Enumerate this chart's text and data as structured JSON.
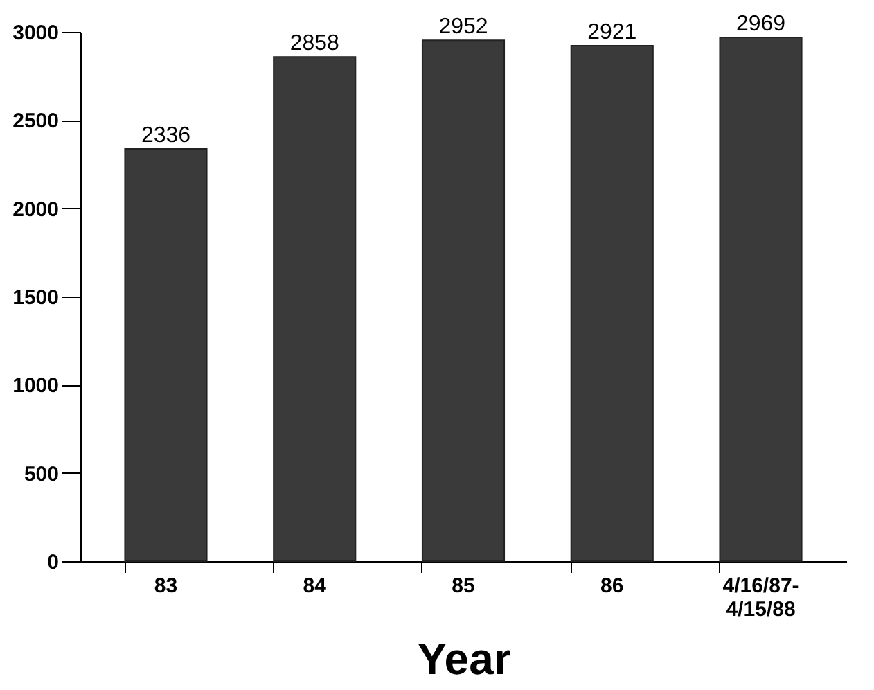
{
  "chart_data": {
    "type": "bar",
    "xlabel": "Year",
    "categories": [
      "83",
      "84",
      "85",
      "86",
      "4/16/87- 4/15/88"
    ],
    "values": [
      2336,
      2858,
      2952,
      2921,
      2969
    ],
    "color": "#3a3a3a",
    "ylim": [
      0,
      3000
    ],
    "yticks": [
      0,
      500,
      1000,
      1500,
      2000,
      2500,
      3000
    ],
    "data_labels": true,
    "grid": false
  }
}
